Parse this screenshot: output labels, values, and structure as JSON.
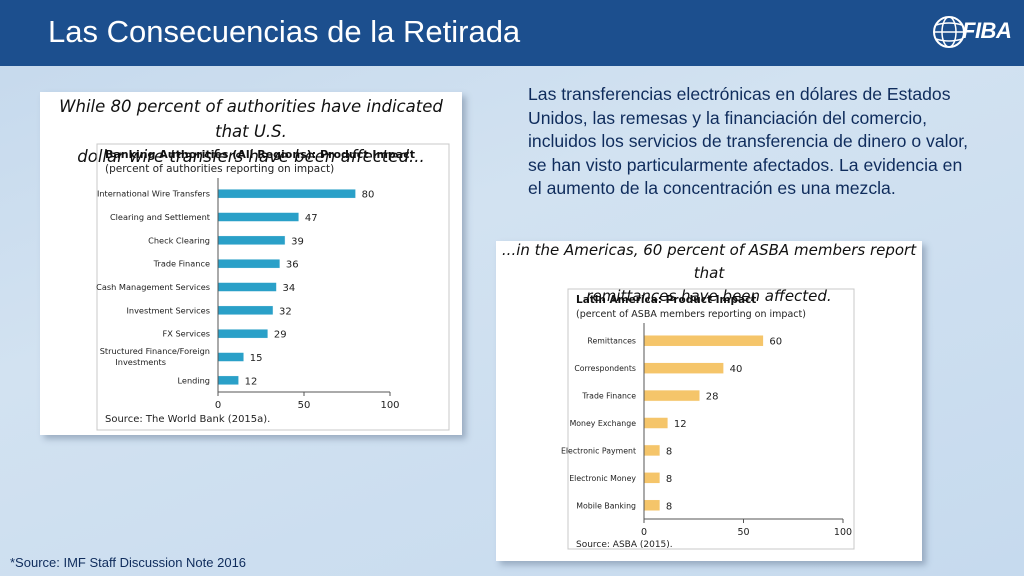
{
  "slide": {
    "title": "Las Consecuencias de la Retirada",
    "logo_text": "FIBA",
    "body_text": "Las transferencias electrónicas en dólares de Estados Unidos, las remesas y la financiación del comercio, incluidos los servicios de transferencia de dinero o valor, se han visto particularmente afectados. La evidencia en el aumento de la concentración es una mezcla.",
    "footnote": "*Source: IMF Staff Discussion Note 2016",
    "colors": {
      "title_bar": "#1c4f8e",
      "bar_fill": "#2aa0c8",
      "bar_fill_right": "#f5c56a",
      "text": "#0f2c5c"
    }
  },
  "left_panel": {
    "heading_line1": "While 80 percent of authorities have indicated that U.S.",
    "heading_line2": "dollar wire transfers have been affected..."
  },
  "right_panel": {
    "heading_line1": "...in the Americas, 60 percent of ASBA members report that",
    "heading_line2": "remittances have been affected."
  },
  "chart_data": [
    {
      "type": "bar",
      "orientation": "horizontal",
      "title": "Banking Authorities (All Regions): Product Impact",
      "subtitle": "(percent of authorities reporting on impact)",
      "categories": [
        "International Wire Transfers",
        "Clearing and Settlement",
        "Check Clearing",
        "Trade Finance",
        "Cash Management Services",
        "Investment Services",
        "FX Services",
        "Structured Finance/Foreign Investments",
        "Lending"
      ],
      "values": [
        80,
        47,
        39,
        36,
        34,
        32,
        29,
        15,
        12
      ],
      "xlim": [
        0,
        100
      ],
      "xticks": [
        0,
        50,
        100
      ],
      "grid": false,
      "source": "Source: The World Bank (2015a)."
    },
    {
      "type": "bar",
      "orientation": "horizontal",
      "title": "Latin America: Product Impact",
      "subtitle": "(percent of ASBA members reporting on impact)",
      "categories": [
        "Remittances",
        "Correspondents",
        "Trade Finance",
        "Money Exchange",
        "Electronic Payment",
        "Electronic Money",
        "Mobile Banking"
      ],
      "values": [
        60,
        40,
        28,
        12,
        8,
        8,
        8
      ],
      "xlim": [
        0,
        100
      ],
      "xticks": [
        0,
        50,
        100
      ],
      "grid": false,
      "source": "Source: ASBA (2015)."
    }
  ]
}
